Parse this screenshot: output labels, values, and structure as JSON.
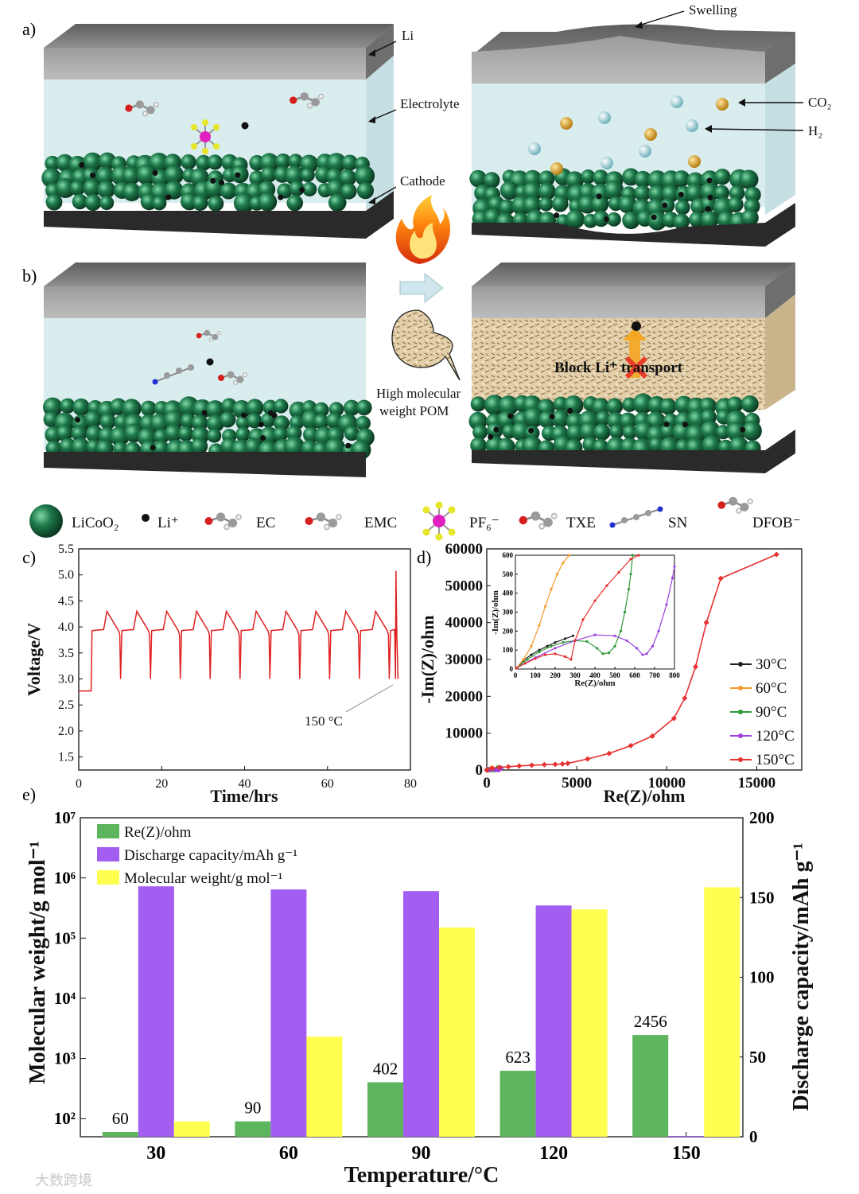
{
  "panel_labels": {
    "a": "a)",
    "b": "b)",
    "c": "c)",
    "d": "d)",
    "e": "e)"
  },
  "schematic": {
    "labels": {
      "li": "Li",
      "electrolyte": "Electrolyte",
      "cathode": "Cathode",
      "swelling": "Swelling",
      "co2": "CO₂",
      "h2": "H₂",
      "pom": [
        "High molecular",
        "weight POM"
      ],
      "block": "Block Li⁺ transport"
    },
    "legend": [
      {
        "key": "licoo2",
        "label": "LiCoO₂"
      },
      {
        "key": "li",
        "label": "Li⁺"
      },
      {
        "key": "ec",
        "label": "EC"
      },
      {
        "key": "emc",
        "label": "EMC"
      },
      {
        "key": "pf6",
        "label": "PF₆⁻"
      },
      {
        "key": "txe",
        "label": "TXE"
      },
      {
        "key": "sn",
        "label": "SN"
      },
      {
        "key": "dfob",
        "label": "DFOB⁻"
      }
    ],
    "colors": {
      "li_metal": "#8f8f8f",
      "electrolyte": "#d9ecee",
      "cathode": "#1f7a4c",
      "substrate": "#2a2a2a",
      "pom": "#d8c3a0",
      "co2": "#d4a12c",
      "h2": "#a9d5dc"
    }
  },
  "chart_data": [
    {
      "id": "c",
      "type": "line",
      "xlabel": "Time/hrs",
      "ylabel": "Voltage/V",
      "xlim": [
        0,
        80
      ],
      "ylim": [
        1.25,
        5.5
      ],
      "xticks": [
        0,
        20,
        40,
        60,
        80
      ],
      "yticks": [
        1.5,
        2.0,
        2.5,
        3.0,
        3.5,
        4.0,
        4.5,
        5.0,
        5.5
      ],
      "annotation": "150 °C",
      "color": "#e02020",
      "series": [
        {
          "x": [
            0,
            3,
            3.2,
            6,
            6.8,
            9.6,
            9.9,
            10.1,
            10.4,
            13.2,
            14,
            16.8,
            17.1,
            17.3,
            17.6,
            20.4,
            21.2,
            24,
            24.3,
            24.5,
            24.8,
            27.6,
            28.4,
            31.2,
            31.5,
            31.7,
            32,
            34.8,
            35.6,
            38.4,
            38.7,
            38.9,
            39.2,
            42,
            42.8,
            45.6,
            45.9,
            46.1,
            46.4,
            49.2,
            50,
            52.8,
            53.1,
            53.3,
            53.6,
            56.4,
            57.2,
            60,
            60.3,
            60.5,
            60.8,
            63.6,
            64.4,
            67.2,
            67.5,
            67.7,
            68,
            70.8,
            71.6,
            74.4,
            74.7,
            74.9,
            75.2,
            76.2,
            76.4,
            76.5,
            76.7,
            77
          ],
          "y": [
            2.77,
            2.77,
            3.93,
            3.95,
            4.3,
            3.93,
            3.85,
            3.0,
            3.93,
            3.95,
            4.3,
            3.93,
            3.85,
            3.0,
            3.93,
            3.95,
            4.3,
            3.93,
            3.85,
            3.0,
            3.93,
            3.95,
            4.3,
            3.93,
            3.85,
            3.0,
            3.93,
            3.95,
            4.3,
            3.93,
            3.85,
            3.0,
            3.93,
            3.95,
            4.3,
            3.93,
            3.85,
            3.0,
            3.93,
            3.95,
            4.3,
            3.93,
            3.85,
            3.0,
            3.93,
            3.95,
            4.3,
            3.93,
            3.85,
            3.0,
            3.93,
            3.95,
            4.3,
            3.93,
            3.85,
            3.0,
            3.93,
            3.95,
            4.3,
            3.93,
            3.85,
            3.0,
            3.93,
            3.95,
            3.0,
            5.08,
            3.93,
            3.0
          ]
        }
      ]
    },
    {
      "id": "d",
      "type": "line",
      "xlabel": "Re(Z)/ohm",
      "ylabel": "-Im(Z)/ohm",
      "xlim": [
        0,
        17500
      ],
      "ylim": [
        0,
        60000
      ],
      "xticks": [
        0,
        5000,
        10000,
        15000
      ],
      "yticks": [
        0,
        10000,
        20000,
        30000,
        40000,
        50000,
        60000
      ],
      "series": [
        {
          "name": "30°C",
          "color": "#222222",
          "marker": "triangle-down",
          "x": [
            0,
            40,
            100,
            200,
            300
          ],
          "y": [
            0,
            60,
            100,
            140,
            170
          ]
        },
        {
          "name": "60°C",
          "color": "#f59a2a",
          "marker": "triangle-left",
          "x": [
            0,
            60,
            110,
            160,
            220,
            300
          ],
          "y": [
            0,
            80,
            120,
            200,
            380,
            600
          ]
        },
        {
          "name": "90°C",
          "color": "#2f9a3a",
          "marker": "circle",
          "x": [
            0,
            100,
            250,
            350,
            420,
            480,
            530,
            570,
            600
          ],
          "y": [
            0,
            80,
            150,
            130,
            70,
            90,
            200,
            400,
            600
          ]
        },
        {
          "name": "120°C",
          "color": "#9b40e0",
          "marker": "triangle-up",
          "x": [
            0,
            150,
            350,
            500,
            600,
            640,
            700,
            760,
            800
          ],
          "y": [
            0,
            100,
            180,
            175,
            120,
            80,
            150,
            350,
            550
          ]
        },
        {
          "name": "150°C",
          "color": "#e83030",
          "marker": "diamond",
          "x": [
            0,
            300,
            700,
            1200,
            1800,
            2500,
            3200,
            3800,
            4200,
            4500,
            5600,
            6800,
            8000,
            9200,
            10400,
            11000,
            11600,
            12200,
            13000,
            16100
          ],
          "y": [
            0,
            450,
            700,
            900,
            1100,
            1300,
            1450,
            1550,
            1650,
            1800,
            3000,
            4500,
            6600,
            9200,
            14000,
            19500,
            28000,
            40000,
            52000,
            58500
          ]
        }
      ],
      "inset": {
        "xlabel": "Re(Z)/ohm",
        "ylabel": "-Im(Z)/ohm",
        "xlim": [
          0,
          800
        ],
        "ylim": [
          0,
          600
        ],
        "xticks": [
          0,
          100,
          200,
          300,
          400,
          500,
          600,
          700,
          800
        ],
        "yticks": [
          0,
          100,
          200,
          300,
          400,
          500,
          600
        ],
        "series": [
          {
            "name": "30°C",
            "color": "#222222",
            "x": [
              5,
              40,
              80,
              120,
              160,
              200,
              250,
              290
            ],
            "y": [
              5,
              45,
              75,
              100,
              120,
              140,
              160,
              175
            ]
          },
          {
            "name": "60°C",
            "color": "#f59a2a",
            "x": [
              5,
              40,
              80,
              120,
              150,
              180,
              210,
              240,
              270
            ],
            "y": [
              5,
              50,
              120,
              230,
              330,
              420,
              500,
              560,
              600
            ]
          },
          {
            "name": "90°C",
            "color": "#2f9a3a",
            "x": [
              5,
              60,
              120,
              180,
              240,
              300,
              360,
              410,
              440,
              470,
              500,
              530,
              550,
              570,
              580,
              590
            ],
            "y": [
              5,
              50,
              90,
              120,
              140,
              150,
              145,
              110,
              80,
              85,
              120,
              200,
              300,
              420,
              500,
              600
            ]
          },
          {
            "name": "120°C",
            "color": "#9b40e0",
            "x": [
              5,
              100,
              200,
              300,
              400,
              500,
              560,
              610,
              640,
              660,
              690,
              720,
              760,
              790,
              800
            ],
            "y": [
              5,
              60,
              110,
              150,
              180,
              175,
              150,
              110,
              75,
              80,
              120,
              200,
              340,
              480,
              540
            ]
          },
          {
            "name": "150°C",
            "color": "#e83030",
            "x": [
              5,
              50,
              100,
              150,
              200,
              250,
              280,
              300,
              340,
              400,
              460,
              520,
              580,
              620
            ],
            "y": [
              5,
              30,
              55,
              75,
              80,
              65,
              50,
              150,
              260,
              360,
              440,
              510,
              580,
              600
            ]
          }
        ]
      }
    },
    {
      "id": "e",
      "type": "bar",
      "xlabel": "Temperature/°C",
      "ylabel_left": "Molecular weight/g mol⁻¹",
      "ylabel_right": "Discharge capacity/mAh g⁻¹",
      "categories": [
        "30",
        "60",
        "90",
        "120",
        "150"
      ],
      "y_left_scale": "log",
      "y_left_lim": [
        50,
        10000000
      ],
      "y_left_ticks": [
        "10²",
        "10³",
        "10⁴",
        "10⁵",
        "10⁶",
        "10⁷"
      ],
      "y_right_lim": [
        0,
        200
      ],
      "y_right_ticks": [
        0,
        50,
        100,
        150,
        200
      ],
      "series": [
        {
          "name": "Re(Z)/ohm",
          "color": "#5db55d",
          "axis": "left",
          "values": [
            60,
            90,
            402,
            623,
            2456
          ],
          "labels": [
            "60",
            "90",
            "402",
            "623",
            "2456"
          ]
        },
        {
          "name": "Discharge capacity/mAh g⁻¹",
          "color": "#a35df0",
          "axis": "right",
          "values": [
            157,
            155,
            154,
            145,
            0.5
          ]
        },
        {
          "name": "Molecular weight/g mol⁻¹",
          "color": "#ffff50",
          "axis": "left",
          "values": [
            90,
            2300,
            150000,
            300000,
            700000
          ]
        }
      ]
    }
  ],
  "watermark": "大数跨境"
}
